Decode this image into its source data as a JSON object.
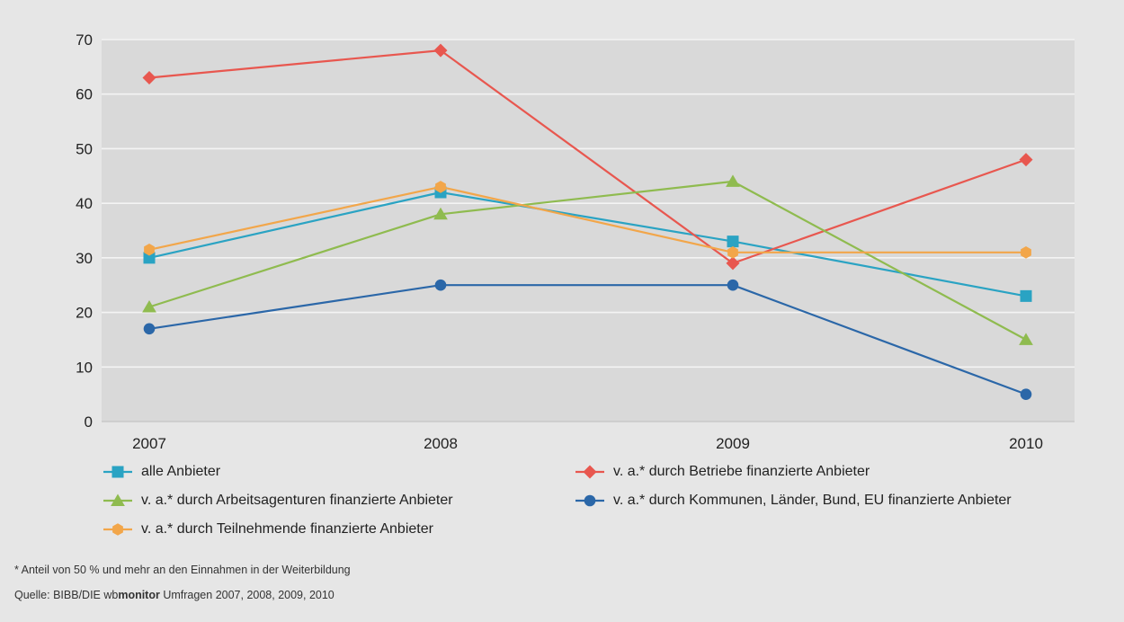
{
  "chart_data": {
    "type": "line",
    "title": "",
    "xlabel": "",
    "ylabel": "",
    "categories": [
      "2007",
      "2008",
      "2009",
      "2010"
    ],
    "ylim": [
      0,
      70
    ],
    "yticks": [
      0,
      10,
      20,
      30,
      40,
      50,
      60,
      70
    ],
    "grid": true,
    "legend_position": "bottom",
    "series": [
      {
        "name": "alle Anbieter",
        "values": [
          30,
          42,
          33,
          23
        ],
        "color": "#2aa3c3",
        "marker": "square"
      },
      {
        "name": "v. a.* durch Betriebe finanzierte Anbieter",
        "values": [
          63,
          68,
          29,
          48
        ],
        "color": "#e8574f",
        "marker": "diamond"
      },
      {
        "name": "v. a.* durch Arbeitsagenturen finanzierte Anbieter",
        "values": [
          21,
          38,
          44,
          15
        ],
        "color": "#8fbb4f",
        "marker": "triangle"
      },
      {
        "name": "v. a.* durch Kommunen, Länder, Bund, EU finanzierte Anbieter",
        "values": [
          17,
          25,
          25,
          5
        ],
        "color": "#2b67a8",
        "marker": "circle"
      },
      {
        "name": "v. a.* durch Teilnehmende finanzierte Anbieter",
        "values": [
          31.5,
          43,
          31,
          31
        ],
        "color": "#f2a64a",
        "marker": "hexagon"
      }
    ]
  },
  "footnote": "* Anteil von 50 % und mehr an den Einnahmen in der Weiterbildung",
  "source": {
    "prefix": "Quelle: BIBB/DIE wb",
    "brand": "monitor",
    "suffix": " Umfragen 2007, 2008, 2009, 2010"
  }
}
